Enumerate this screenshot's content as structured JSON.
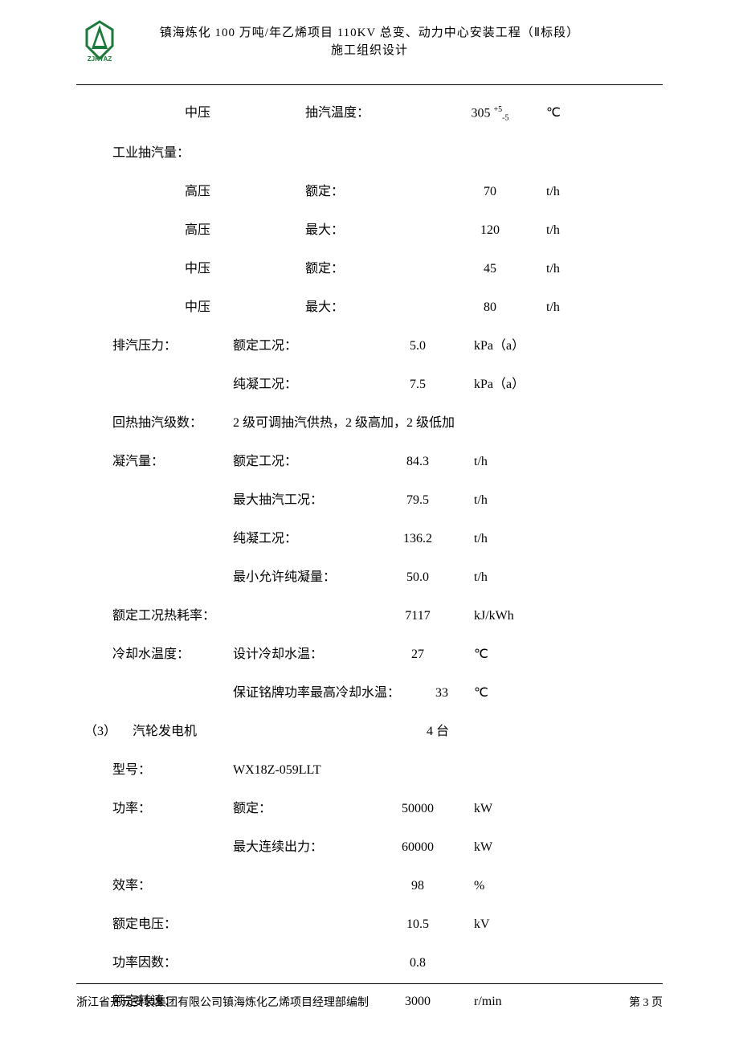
{
  "header": {
    "line1": "镇海炼化 100 万吨/年乙烯项目 110KV 总变、动力中心安装工程（Ⅱ标段）",
    "line2": "施工组织设计",
    "logo_text": "ZJKYAZ",
    "logo_color": "#1a7a3a"
  },
  "rows": [
    {
      "c1": "",
      "c1b": "中压",
      "c2": "抽汽温度：",
      "c3": "305 ",
      "c3_sup": "+5",
      "c3_sub": "-5",
      "c4": "℃"
    },
    {
      "c1": "工业抽汽量：",
      "c2": "",
      "c3": "",
      "c4": ""
    },
    {
      "c1": "",
      "c1b": "高压",
      "c2": "额定：",
      "c3": "70",
      "c4": "t/h"
    },
    {
      "c1": "",
      "c1b": "高压",
      "c2": "最大：",
      "c3": "120",
      "c4": "t/h"
    },
    {
      "c1": "",
      "c1b": "中压",
      "c2": "额定：",
      "c3": "45",
      "c4": "t/h"
    },
    {
      "c1": "",
      "c1b": "中压",
      "c2": "最大：",
      "c3": "80",
      "c4": "t/h"
    },
    {
      "c1": "排汽压力：",
      "c2": "额定工况：",
      "c3": "5.0",
      "c4": "kPa（a）"
    },
    {
      "c1": "",
      "c2": "纯凝工况：",
      "c3": "7.5",
      "c4": "kPa（a）"
    },
    {
      "c1": "回热抽汽级数：",
      "full": "2 级可调抽汽供热，2 级高加，2 级低加"
    },
    {
      "c1": "凝汽量：",
      "c2": "额定工况：",
      "c3": "84.3",
      "c4": "t/h"
    },
    {
      "c1": "",
      "c2": "最大抽汽工况：",
      "c3": "79.5",
      "c4": "t/h"
    },
    {
      "c1": "",
      "c2": "纯凝工况：",
      "c3": "136.2",
      "c4": "t/h"
    },
    {
      "c1": "",
      "c2": "最小允许纯凝量：",
      "c3": "50.0",
      "c4": "t/h"
    },
    {
      "c1": "额定工况热耗率：",
      "c2": "",
      "c3": "7117",
      "c4": "kJ/kWh"
    },
    {
      "c1": "冷却水温度：",
      "c2": "设计冷却水温：",
      "c3": "27",
      "c4": "℃"
    },
    {
      "c1": "",
      "c2": "保证铭牌功率最高冷却水温：",
      "c3": "33",
      "c4": "℃",
      "wide": true
    },
    {
      "pre": "（3）",
      "c1": "汽轮发电机",
      "c2": "",
      "c3": "",
      "c4": "4 台",
      "section": true
    },
    {
      "c1": "型号：",
      "c2": "WX18Z-059LLT",
      "c3": "",
      "c4": ""
    },
    {
      "c1": "功率：",
      "c2": "额定：",
      "c3": "50000",
      "c4": "kW"
    },
    {
      "c1": "",
      "c2": "最大连续出力：",
      "c3": "60000",
      "c4": "kW"
    },
    {
      "c1": "效率：",
      "c2": "",
      "c3": "98",
      "c4": "%"
    },
    {
      "c1": "额定电压：",
      "c2": "",
      "c3": "10.5",
      "c4": "kV"
    },
    {
      "c1": "功率因数：",
      "c2": "",
      "c3": "0.8",
      "c4": ""
    },
    {
      "c1": "额定转速：",
      "c2": "",
      "c3": "3000",
      "c4": "r/min"
    }
  ],
  "footer": {
    "left": "浙江省开元安装集团有限公司镇海炼化乙烯项目经理部编制",
    "right": "第 3 页"
  }
}
